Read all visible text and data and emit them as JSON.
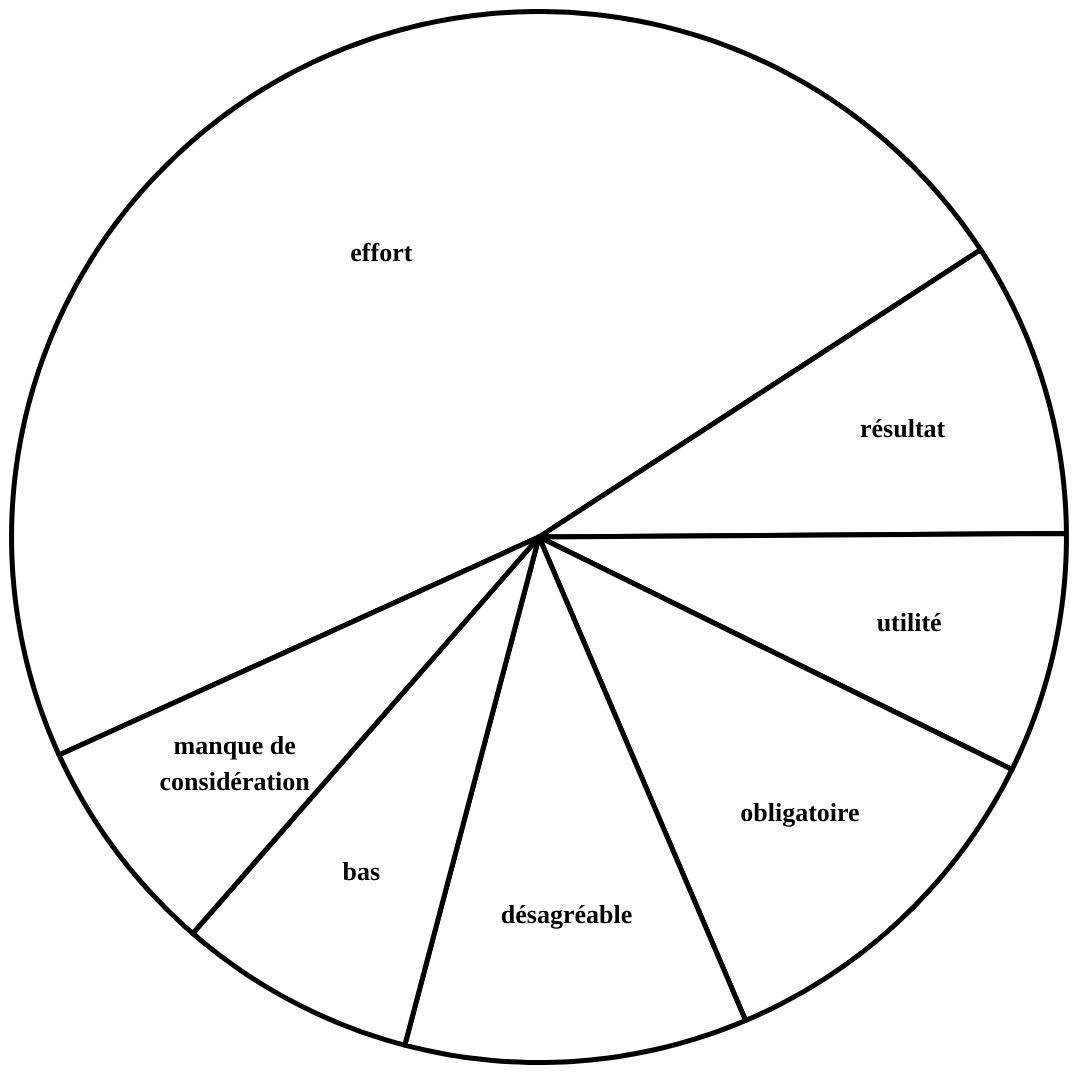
{
  "chart_data": {
    "type": "pie",
    "categories": [
      "effort",
      "résultat",
      "utilité",
      "obligatoire",
      "désagréable",
      "bas",
      "manque de considération"
    ],
    "values": [
      47.6,
      9.1,
      7.4,
      11.3,
      10.5,
      7.3,
      6.8
    ],
    "colors": [
      "#ffffff",
      "#ffffff",
      "#ffffff",
      "#ffffff",
      "#ffffff",
      "#ffffff",
      "#ffffff"
    ]
  }
}
